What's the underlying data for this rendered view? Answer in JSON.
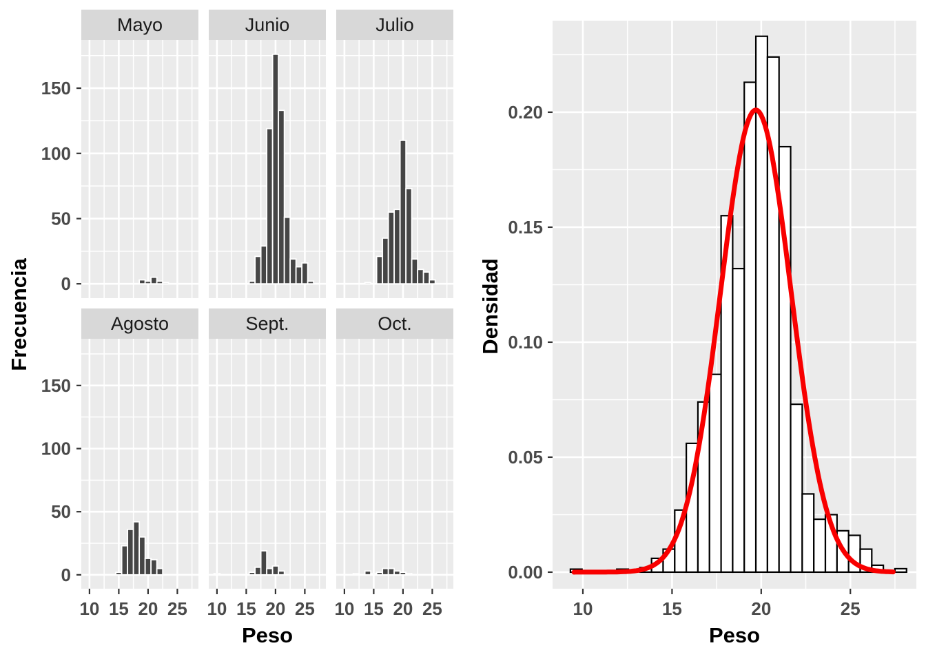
{
  "figure": {
    "description": "Two ggplot-style charts: left = faceted frequency histograms by month, right = density histogram with normal curve",
    "background": "#ffffff",
    "panel_bg": "#ebebeb",
    "strip_bg": "#d8d8d8",
    "grid_color": "#ffffff",
    "tick_mark_color": "#333333",
    "tick_label_color": "#4a4a4a"
  },
  "chart_data": [
    {
      "type": "bar",
      "title": "",
      "xlabel": "Peso",
      "ylabel": "Frecuencia",
      "x_ticks": [
        10,
        15,
        20,
        25
      ],
      "x_tick_labels": [
        "10",
        "15",
        "20",
        "25"
      ],
      "y_ticks": [
        0,
        50,
        100,
        150
      ],
      "y_tick_labels": [
        "0",
        "50",
        "100",
        "150"
      ],
      "minor_x": [
        12.5,
        17.5,
        22.5,
        27.5
      ],
      "minor_y": [
        25,
        75,
        125,
        175
      ],
      "xlim": [
        8.6,
        28.6
      ],
      "ylim": [
        -11,
        187
      ],
      "binwidth": 1,
      "bar_fill": "#454545",
      "bar_stroke": "#ffffff",
      "grid": true,
      "legend": "none",
      "facets": [
        {
          "label": "Mayo",
          "row": 0,
          "col": 0,
          "bins": [
            {
              "x": 19,
              "h": 3
            },
            {
              "x": 20,
              "h": 2
            },
            {
              "x": 21,
              "h": 5
            },
            {
              "x": 22,
              "h": 2
            },
            {
              "x": 23,
              "h": 1
            }
          ]
        },
        {
          "label": "Junio",
          "row": 0,
          "col": 1,
          "bins": [
            {
              "x": 16,
              "h": 2
            },
            {
              "x": 17,
              "h": 21
            },
            {
              "x": 18,
              "h": 29
            },
            {
              "x": 19,
              "h": 119
            },
            {
              "x": 20,
              "h": 176
            },
            {
              "x": 21,
              "h": 133
            },
            {
              "x": 22,
              "h": 51
            },
            {
              "x": 23,
              "h": 19
            },
            {
              "x": 24,
              "h": 13
            },
            {
              "x": 25,
              "h": 16
            },
            {
              "x": 26,
              "h": 2
            }
          ]
        },
        {
          "label": "Julio",
          "row": 0,
          "col": 2,
          "bins": [
            {
              "x": 14,
              "h": 1
            },
            {
              "x": 16,
              "h": 21
            },
            {
              "x": 17,
              "h": 35
            },
            {
              "x": 18,
              "h": 55
            },
            {
              "x": 19,
              "h": 57
            },
            {
              "x": 20,
              "h": 110
            },
            {
              "x": 21,
              "h": 73
            },
            {
              "x": 22,
              "h": 19
            },
            {
              "x": 23,
              "h": 11
            },
            {
              "x": 24,
              "h": 9
            },
            {
              "x": 25,
              "h": 3
            }
          ]
        },
        {
          "label": "Agosto",
          "row": 1,
          "col": 0,
          "bins": [
            {
              "x": 15,
              "h": 2
            },
            {
              "x": 16,
              "h": 23
            },
            {
              "x": 17,
              "h": 36
            },
            {
              "x": 18,
              "h": 42
            },
            {
              "x": 19,
              "h": 30
            },
            {
              "x": 20,
              "h": 13
            },
            {
              "x": 21,
              "h": 12
            },
            {
              "x": 22,
              "h": 5
            }
          ]
        },
        {
          "label": "Sept.",
          "row": 1,
          "col": 1,
          "bins": [
            {
              "x": 10,
              "h": 1
            },
            {
              "x": 16,
              "h": 2
            },
            {
              "x": 17,
              "h": 6
            },
            {
              "x": 18,
              "h": 19
            },
            {
              "x": 19,
              "h": 5
            },
            {
              "x": 20,
              "h": 7
            },
            {
              "x": 21,
              "h": 3
            }
          ]
        },
        {
          "label": "Oct.",
          "row": 1,
          "col": 2,
          "bins": [
            {
              "x": 12,
              "h": 1
            },
            {
              "x": 14,
              "h": 3
            },
            {
              "x": 15,
              "h": 1
            },
            {
              "x": 16,
              "h": 2
            },
            {
              "x": 17,
              "h": 5
            },
            {
              "x": 18,
              "h": 5
            },
            {
              "x": 19,
              "h": 3
            },
            {
              "x": 20,
              "h": 2
            },
            {
              "x": 21,
              "h": 1
            }
          ]
        }
      ]
    },
    {
      "type": "histogram",
      "title": "",
      "xlabel": "Peso",
      "ylabel": "Densidad",
      "x_ticks": [
        10,
        15,
        20,
        25
      ],
      "x_tick_labels": [
        "10",
        "15",
        "20",
        "25"
      ],
      "y_ticks": [
        0.0,
        0.05,
        0.1,
        0.15,
        0.2
      ],
      "y_tick_labels": [
        "0.00",
        "0.05",
        "0.10",
        "0.15",
        "0.20"
      ],
      "minor_x": [
        12.5,
        17.5,
        22.5,
        27.5
      ],
      "minor_y": [
        0.025,
        0.075,
        0.125,
        0.175,
        0.225
      ],
      "xlim": [
        8.3,
        28.7
      ],
      "ylim": [
        -0.0072,
        0.2398
      ],
      "binwidth": 0.65,
      "bar_fill": "#ffffff",
      "bar_stroke": "#000000",
      "grid": true,
      "legend": "none",
      "bars": [
        {
          "x": 9.3,
          "h": 0.0013
        },
        {
          "x": 11.9,
          "h": 0.0013
        },
        {
          "x": 13.2,
          "h": 0.002
        },
        {
          "x": 13.85,
          "h": 0.006
        },
        {
          "x": 14.5,
          "h": 0.01
        },
        {
          "x": 15.15,
          "h": 0.027
        },
        {
          "x": 15.8,
          "h": 0.056
        },
        {
          "x": 16.45,
          "h": 0.074
        },
        {
          "x": 17.1,
          "h": 0.086
        },
        {
          "x": 17.75,
          "h": 0.155
        },
        {
          "x": 18.4,
          "h": 0.132
        },
        {
          "x": 19.05,
          "h": 0.213
        },
        {
          "x": 19.7,
          "h": 0.233
        },
        {
          "x": 20.35,
          "h": 0.224
        },
        {
          "x": 21.0,
          "h": 0.185
        },
        {
          "x": 21.65,
          "h": 0.073
        },
        {
          "x": 22.3,
          "h": 0.034
        },
        {
          "x": 22.95,
          "h": 0.023
        },
        {
          "x": 23.6,
          "h": 0.025
        },
        {
          "x": 24.25,
          "h": 0.018
        },
        {
          "x": 24.9,
          "h": 0.016
        },
        {
          "x": 25.55,
          "h": 0.01
        },
        {
          "x": 26.2,
          "h": 0.003
        },
        {
          "x": 27.5,
          "h": 0.0015
        }
      ],
      "curve": {
        "name": "normal-density-curve",
        "color": "#f80000",
        "mean": 19.7,
        "sd": 1.98,
        "peak": 0.201,
        "x_start": 9.5,
        "x_end": 27.4,
        "stroke_width": 7
      }
    }
  ]
}
